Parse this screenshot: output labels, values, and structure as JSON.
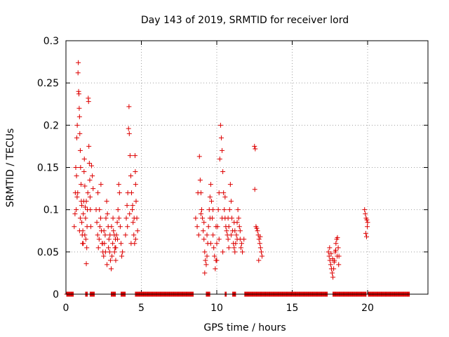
{
  "chart_data": {
    "type": "scatter",
    "title": "Day 143 of 2019, SRMTID for receiver lord",
    "xlabel": "GPS time / hours",
    "ylabel": "SRMTID / TECUs",
    "xlim": [
      0,
      24
    ],
    "ylim": [
      0,
      0.3
    ],
    "x_ticks": [
      0,
      5,
      10,
      15,
      20
    ],
    "x_tick_labels": [
      "0",
      "5",
      "10",
      "15",
      "20"
    ],
    "y_ticks": [
      0,
      0.05,
      0.1,
      0.15,
      0.2,
      0.25,
      0.3
    ],
    "y_tick_labels": [
      "0",
      "0.05",
      "0.1",
      "0.15",
      "0.2",
      "0.25",
      "0.3"
    ],
    "grid": true,
    "marker": "+",
    "color": "#dd0000",
    "series": [
      {
        "name": "SRMTID",
        "points": [
          [
            0.55,
            0.08
          ],
          [
            0.6,
            0.095
          ],
          [
            0.62,
            0.12
          ],
          [
            0.65,
            0.15
          ],
          [
            0.7,
            0.14
          ],
          [
            0.72,
            0.185
          ],
          [
            0.75,
            0.2
          ],
          [
            0.78,
            0.12
          ],
          [
            0.8,
            0.262
          ],
          [
            0.82,
            0.274
          ],
          [
            0.84,
            0.24
          ],
          [
            0.86,
            0.237
          ],
          [
            0.88,
            0.22
          ],
          [
            0.9,
            0.21
          ],
          [
            0.92,
            0.19
          ],
          [
            0.95,
            0.17
          ],
          [
            0.97,
            0.15
          ],
          [
            1.0,
            0.13
          ],
          [
            1.02,
            0.11
          ],
          [
            1.05,
            0.085
          ],
          [
            1.08,
            0.07
          ],
          [
            1.1,
            0.06
          ],
          [
            1.12,
            0.075
          ],
          [
            1.15,
            0.095
          ],
          [
            1.18,
            0.11
          ],
          [
            1.2,
            0.145
          ],
          [
            1.22,
            0.16
          ],
          [
            1.25,
            0.128
          ],
          [
            1.28,
            0.103
          ],
          [
            1.3,
            0.09
          ],
          [
            1.32,
            0.065
          ],
          [
            1.35,
            0.036
          ],
          [
            1.38,
            0.055
          ],
          [
            1.4,
            0.08
          ],
          [
            1.42,
            0.1
          ],
          [
            1.45,
            0.12
          ],
          [
            1.48,
            0.232
          ],
          [
            1.5,
            0.228
          ],
          [
            1.52,
            0.175
          ],
          [
            1.55,
            0.155
          ],
          [
            1.58,
            0.135
          ],
          [
            1.6,
            0.115
          ],
          [
            1.62,
            0.1
          ],
          [
            1.65,
            0.08
          ],
          [
            1.7,
            0.152
          ],
          [
            1.75,
            0.14
          ],
          [
            1.8,
            0.125
          ],
          [
            0.68,
            0.1
          ],
          [
            0.74,
            0.115
          ],
          [
            0.9,
            0.075
          ],
          [
            0.95,
            0.09
          ],
          [
            1.05,
            0.105
          ],
          [
            1.15,
            0.06
          ],
          [
            1.25,
            0.07
          ],
          [
            1.35,
            0.11
          ],
          [
            2.0,
            0.1
          ],
          [
            2.05,
            0.085
          ],
          [
            2.1,
            0.07
          ],
          [
            2.15,
            0.055
          ],
          [
            2.2,
            0.065
          ],
          [
            2.25,
            0.08
          ],
          [
            2.3,
            0.09
          ],
          [
            2.35,
            0.075
          ],
          [
            2.4,
            0.06
          ],
          [
            2.45,
            0.05
          ],
          [
            2.5,
            0.045
          ],
          [
            2.55,
            0.06
          ],
          [
            2.6,
            0.07
          ],
          [
            2.65,
            0.09
          ],
          [
            2.7,
            0.11
          ],
          [
            2.75,
            0.095
          ],
          [
            2.8,
            0.08
          ],
          [
            2.85,
            0.065
          ],
          [
            2.9,
            0.05
          ],
          [
            2.95,
            0.04
          ],
          [
            3.0,
            0.03
          ],
          [
            3.05,
            0.045
          ],
          [
            3.1,
            0.06
          ],
          [
            3.15,
            0.075
          ],
          [
            3.2,
            0.07
          ],
          [
            3.25,
            0.055
          ],
          [
            3.3,
            0.04
          ],
          [
            2.12,
            0.12
          ],
          [
            2.22,
            0.1
          ],
          [
            2.32,
            0.13
          ],
          [
            2.42,
            0.06
          ],
          [
            2.52,
            0.075
          ],
          [
            2.62,
            0.05
          ],
          [
            2.72,
            0.035
          ],
          [
            2.82,
            0.055
          ],
          [
            2.92,
            0.07
          ],
          [
            3.02,
            0.08
          ],
          [
            3.12,
            0.09
          ],
          [
            3.22,
            0.05
          ],
          [
            3.28,
            0.065
          ],
          [
            3.3,
            0.055
          ],
          [
            3.35,
            0.07
          ],
          [
            3.4,
            0.085
          ],
          [
            3.45,
            0.1
          ],
          [
            3.5,
            0.13
          ],
          [
            3.55,
            0.12
          ],
          [
            3.6,
            0.08
          ],
          [
            3.65,
            0.06
          ],
          [
            3.7,
            0.045
          ],
          [
            3.75,
            0.05
          ],
          [
            3.42,
            0.065
          ],
          [
            3.52,
            0.09
          ],
          [
            3.95,
            0.07
          ],
          [
            4.0,
            0.09
          ],
          [
            4.05,
            0.105
          ],
          [
            4.1,
            0.12
          ],
          [
            4.15,
            0.196
          ],
          [
            4.18,
            0.222
          ],
          [
            4.2,
            0.19
          ],
          [
            4.25,
            0.164
          ],
          [
            4.3,
            0.14
          ],
          [
            4.35,
            0.12
          ],
          [
            4.4,
            0.1
          ],
          [
            4.45,
            0.085
          ],
          [
            4.5,
            0.07
          ],
          [
            4.55,
            0.06
          ],
          [
            4.58,
            0.164
          ],
          [
            4.6,
            0.145
          ],
          [
            4.62,
            0.13
          ],
          [
            4.65,
            0.11
          ],
          [
            4.7,
            0.09
          ],
          [
            4.75,
            0.075
          ],
          [
            4.08,
            0.08
          ],
          [
            4.22,
            0.095
          ],
          [
            4.32,
            0.06
          ],
          [
            4.42,
            0.105
          ],
          [
            4.52,
            0.09
          ],
          [
            4.62,
            0.065
          ],
          [
            8.6,
            0.09
          ],
          [
            8.7,
            0.08
          ],
          [
            8.8,
            0.07
          ],
          [
            8.85,
            0.163
          ],
          [
            8.9,
            0.135
          ],
          [
            8.95,
            0.12
          ],
          [
            9.0,
            0.1
          ],
          [
            9.05,
            0.09
          ],
          [
            9.1,
            0.075
          ],
          [
            9.15,
            0.065
          ],
          [
            9.2,
            0.05
          ],
          [
            9.25,
            0.04
          ],
          [
            9.3,
            0.035
          ],
          [
            9.35,
            0.045
          ],
          [
            9.4,
            0.06
          ],
          [
            9.45,
            0.08
          ],
          [
            9.5,
            0.1
          ],
          [
            9.55,
            0.115
          ],
          [
            9.6,
            0.13
          ],
          [
            9.65,
            0.11
          ],
          [
            9.7,
            0.09
          ],
          [
            9.75,
            0.07
          ],
          [
            9.8,
            0.055
          ],
          [
            9.85,
            0.045
          ],
          [
            9.9,
            0.03
          ],
          [
            9.95,
            0.04
          ],
          [
            10.0,
            0.06
          ],
          [
            10.05,
            0.08
          ],
          [
            10.1,
            0.1
          ],
          [
            10.15,
            0.12
          ],
          [
            10.2,
            0.16
          ],
          [
            10.25,
            0.2
          ],
          [
            10.3,
            0.185
          ],
          [
            10.35,
            0.17
          ],
          [
            10.4,
            0.145
          ],
          [
            10.45,
            0.12
          ],
          [
            10.5,
            0.1
          ],
          [
            10.55,
            0.09
          ],
          [
            10.6,
            0.08
          ],
          [
            10.65,
            0.075
          ],
          [
            10.7,
            0.07
          ],
          [
            10.75,
            0.065
          ],
          [
            10.8,
            0.08
          ],
          [
            10.85,
            0.1
          ],
          [
            10.9,
            0.13
          ],
          [
            10.95,
            0.11
          ],
          [
            11.0,
            0.09
          ],
          [
            11.05,
            0.075
          ],
          [
            11.1,
            0.06
          ],
          [
            11.15,
            0.055
          ],
          [
            11.2,
            0.05
          ],
          [
            11.25,
            0.06
          ],
          [
            11.3,
            0.07
          ],
          [
            11.35,
            0.085
          ],
          [
            11.4,
            0.1
          ],
          [
            11.45,
            0.09
          ],
          [
            11.5,
            0.08
          ],
          [
            11.55,
            0.065
          ],
          [
            11.6,
            0.055
          ],
          [
            11.65,
            0.06
          ],
          [
            11.7,
            0.05
          ],
          [
            11.8,
            0.065
          ],
          [
            8.75,
            0.12
          ],
          [
            8.95,
            0.095
          ],
          [
            9.15,
            0.085
          ],
          [
            9.35,
            0.07
          ],
          [
            9.55,
            0.09
          ],
          [
            9.75,
            0.1
          ],
          [
            9.95,
            0.08
          ],
          [
            10.15,
            0.065
          ],
          [
            10.35,
            0.09
          ],
          [
            10.55,
            0.115
          ],
          [
            10.75,
            0.09
          ],
          [
            10.95,
            0.07
          ],
          [
            11.15,
            0.085
          ],
          [
            11.35,
            0.065
          ],
          [
            11.55,
            0.075
          ],
          [
            9.2,
            0.025
          ],
          [
            9.6,
            0.06
          ],
          [
            10.0,
            0.04
          ],
          [
            10.4,
            0.05
          ],
          [
            10.8,
            0.055
          ],
          [
            11.2,
            0.075
          ],
          [
            12.5,
            0.175
          ],
          [
            12.55,
            0.172
          ],
          [
            12.52,
            0.124
          ],
          [
            12.6,
            0.08
          ],
          [
            12.65,
            0.078
          ],
          [
            12.7,
            0.075
          ],
          [
            12.75,
            0.07
          ],
          [
            12.8,
            0.065
          ],
          [
            12.85,
            0.06
          ],
          [
            12.9,
            0.055
          ],
          [
            12.95,
            0.05
          ],
          [
            13.0,
            0.045
          ],
          [
            12.78,
            0.04
          ],
          [
            12.88,
            0.068
          ],
          [
            17.4,
            0.05
          ],
          [
            17.45,
            0.045
          ],
          [
            17.5,
            0.04
          ],
          [
            17.55,
            0.035
          ],
          [
            17.6,
            0.03
          ],
          [
            17.65,
            0.025
          ],
          [
            17.7,
            0.02
          ],
          [
            17.75,
            0.03
          ],
          [
            17.8,
            0.04
          ],
          [
            17.85,
            0.05
          ],
          [
            17.9,
            0.06
          ],
          [
            17.95,
            0.065
          ],
          [
            18.0,
            0.067
          ],
          [
            18.05,
            0.055
          ],
          [
            18.1,
            0.045
          ],
          [
            17.48,
            0.055
          ],
          [
            17.58,
            0.048
          ],
          [
            17.68,
            0.042
          ],
          [
            17.78,
            0.038
          ],
          [
            17.88,
            0.052
          ],
          [
            17.98,
            0.045
          ],
          [
            18.08,
            0.035
          ],
          [
            19.8,
            0.1
          ],
          [
            19.85,
            0.095
          ],
          [
            19.9,
            0.09
          ],
          [
            19.95,
            0.088
          ],
          [
            20.0,
            0.085
          ],
          [
            19.88,
            0.072
          ],
          [
            19.93,
            0.068
          ],
          [
            19.98,
            0.08
          ]
        ],
        "zero_runs": [
          [
            0.05,
            0.5
          ],
          [
            1.3,
            1.45
          ],
          [
            1.6,
            1.9
          ],
          [
            3.0,
            3.3
          ],
          [
            3.65,
            3.95
          ],
          [
            4.6,
            8.45
          ],
          [
            9.3,
            9.55
          ],
          [
            10.55,
            10.65
          ],
          [
            11.05,
            11.25
          ],
          [
            11.85,
            17.35
          ],
          [
            17.7,
            19.9
          ],
          [
            20.05,
            22.8
          ]
        ]
      }
    ]
  }
}
